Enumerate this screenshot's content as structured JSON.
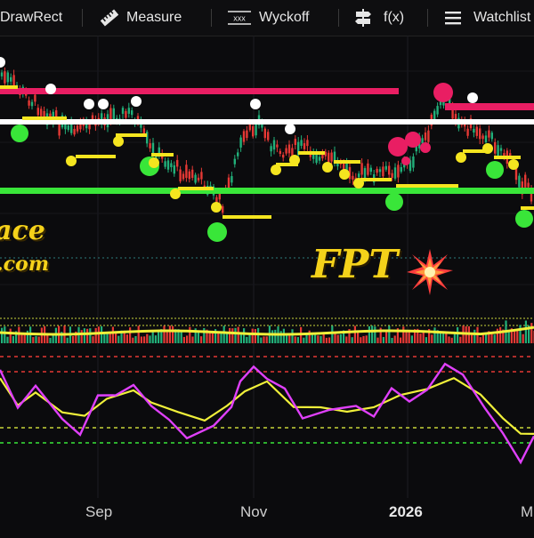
{
  "toolbar": {
    "items": [
      {
        "label": "DrawRect",
        "icon": "draw-rect-icon"
      },
      {
        "label": "Measure",
        "icon": "ruler-icon"
      },
      {
        "label": "Wyckoff",
        "icon": "wyckoff-icon"
      },
      {
        "label": "f(x)",
        "icon": "signpost-icon"
      },
      {
        "label": "Watchlist",
        "icon": "list-icon"
      }
    ]
  },
  "watermark": {
    "line1": "ace",
    "line2": ".com"
  },
  "symbol": "FPT",
  "time_axis": {
    "labels": [
      "Sep",
      "Nov",
      "2026",
      "M"
    ]
  },
  "colors": {
    "background": "#0b0b0d",
    "resistance": "#e91e63",
    "pivot": "#ffffff",
    "support": "#39e639",
    "highlight": "#f5e51f",
    "bull_candle": "#22b07a",
    "bear_candle": "#e53935",
    "oscillator_fast": "#e040fb",
    "oscillator_slow": "#f0f03a"
  }
}
